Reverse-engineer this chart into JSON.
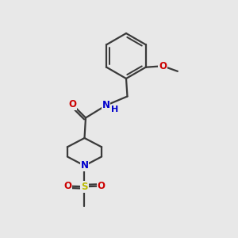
{
  "bg_color": "#e8e8e8",
  "bond_color": "#3a3a3a",
  "bond_width": 1.6,
  "atom_colors": {
    "O": "#cc0000",
    "N": "#0000cc",
    "S": "#bbbb00",
    "C": "#3a3a3a"
  },
  "font_size": 8.5,
  "fig_size": [
    3.0,
    3.0
  ],
  "dpi": 100,
  "xlim": [
    0,
    10
  ],
  "ylim": [
    0,
    10
  ]
}
